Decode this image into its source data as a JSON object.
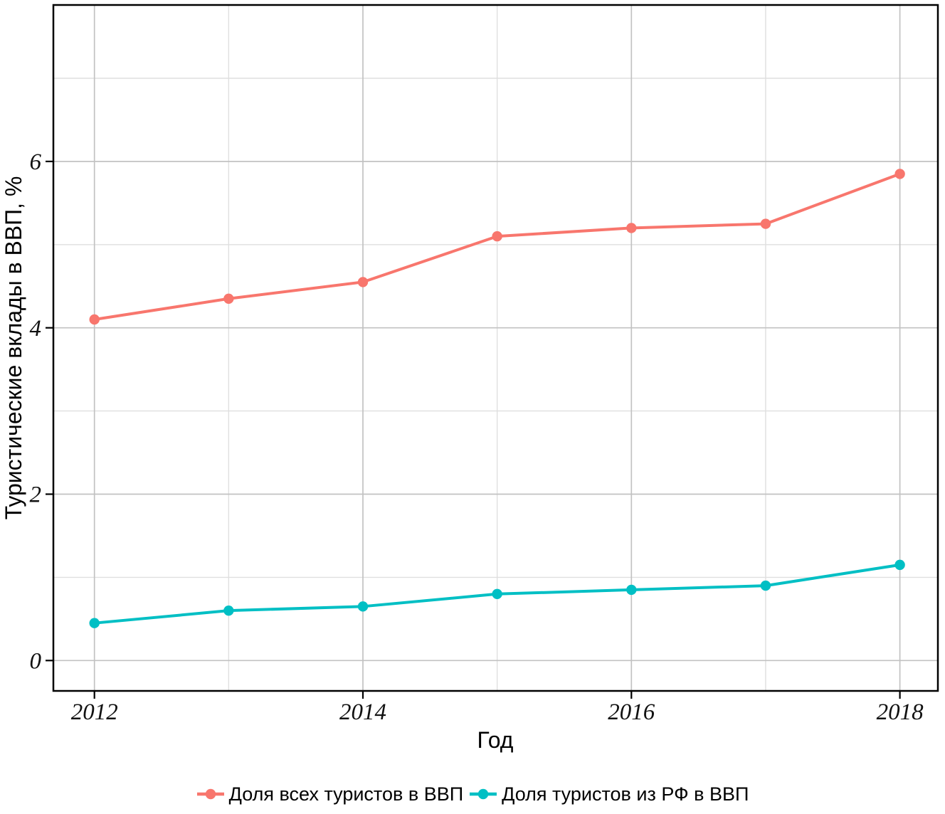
{
  "chart_data": {
    "type": "line",
    "title": "",
    "xlabel": "Год",
    "ylabel": "Туристические вклады в ВВП, %",
    "x": [
      2012,
      2013,
      2014,
      2015,
      2016,
      2017,
      2018
    ],
    "series": [
      {
        "name": "Доля всех туристов в ВВП",
        "color": "#F8766D",
        "values": [
          4.1,
          4.35,
          4.55,
          5.1,
          5.2,
          5.25,
          5.85
        ]
      },
      {
        "name": "Доля туристов из РФ в ВВП",
        "color": "#00BFC4",
        "values": [
          0.45,
          0.6,
          0.65,
          0.8,
          0.85,
          0.9,
          1.15
        ]
      }
    ],
    "x_ticks": {
      "major": [
        2012,
        2014,
        2016,
        2018
      ],
      "minor": [
        2013,
        2015,
        2017
      ],
      "labels": [
        "2012",
        "2014",
        "2016",
        "2018"
      ]
    },
    "y_ticks": {
      "major": [
        0,
        2,
        4,
        6
      ],
      "minor": [
        1,
        3,
        5,
        7
      ],
      "labels": [
        "0",
        "2",
        "4",
        "6"
      ]
    },
    "xlim": [
      2011.69,
      2018.28
    ],
    "ylim": [
      -0.37,
      7.88
    ],
    "grid": "major and minor gridlines, gray on white",
    "legend_position": "bottom"
  },
  "colors": {
    "series_all_tourists": "#F8766D",
    "series_rf_tourists": "#00BFC4",
    "grid_major": "#c2c2c2",
    "grid_minor": "#dfdfdf",
    "panel_border": "#000000",
    "tick": "#000000",
    "text": "#000000",
    "background": "#ffffff"
  }
}
